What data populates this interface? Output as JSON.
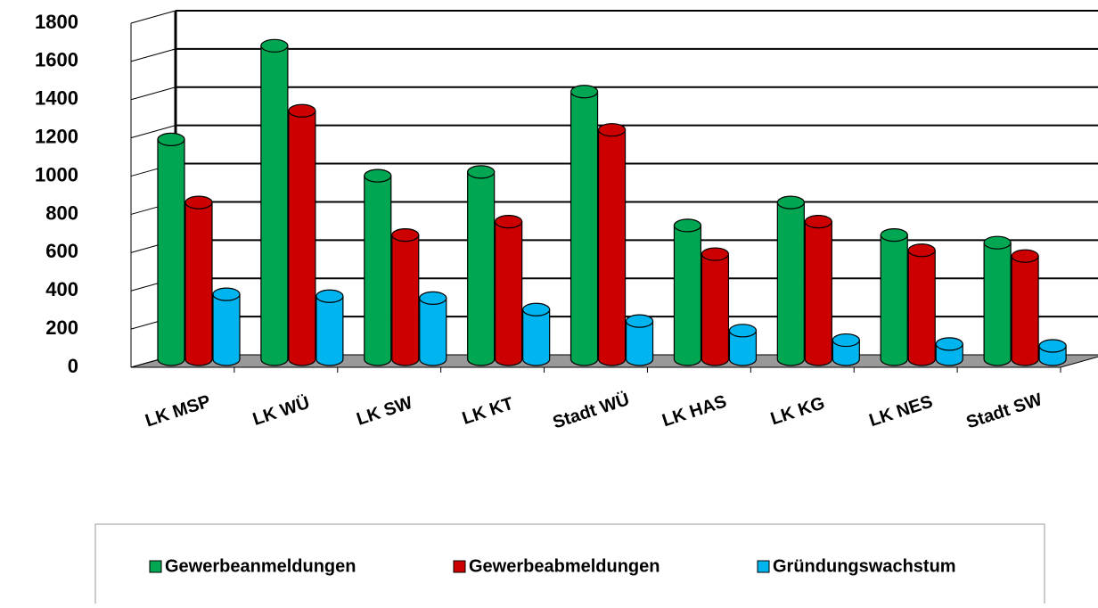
{
  "chart_data": {
    "type": "bar3d",
    "categories": [
      "LK MSP",
      "LK WÜ",
      "LK SW",
      "LK KT",
      "Stadt WÜ",
      "LK HAS",
      "LK KG",
      "LK NES",
      "Stadt SW"
    ],
    "series": [
      {
        "name": "Gewerbeanmeldungen",
        "color": "#00a651",
        "values": [
          1150,
          1640,
          960,
          980,
          1400,
          700,
          820,
          650,
          610
        ]
      },
      {
        "name": "Gewerbeabmeldungen",
        "color": "#cc0000",
        "values": [
          820,
          1300,
          650,
          720,
          1200,
          550,
          720,
          570,
          540
        ]
      },
      {
        "name": "Gründungswachstum",
        "color": "#00b4f0",
        "values": [
          340,
          330,
          320,
          260,
          200,
          150,
          100,
          80,
          70
        ]
      }
    ],
    "ylim": [
      0,
      1800
    ],
    "yticks": [
      0,
      200,
      400,
      600,
      800,
      1000,
      1200,
      1400,
      1600,
      1800
    ],
    "grid": true,
    "legend": "bottom"
  }
}
